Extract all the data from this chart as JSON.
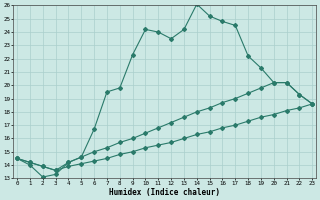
{
  "xlabel": "Humidex (Indice chaleur)",
  "bg_color": "#cce8e4",
  "line_color": "#2a7a6a",
  "grid_color": "#aacfcc",
  "x_min": 0,
  "x_max": 23,
  "y_min": 13,
  "y_max": 26,
  "line1_x": [
    0,
    1,
    2,
    3,
    4,
    5,
    6,
    7,
    8,
    9,
    10,
    11,
    12,
    13,
    14,
    15,
    16,
    17,
    18,
    19,
    20,
    21,
    22,
    23
  ],
  "line1_y": [
    14.5,
    14.0,
    13.1,
    13.3,
    14.2,
    14.6,
    16.7,
    19.5,
    19.8,
    22.3,
    24.2,
    24.0,
    23.5,
    24.2,
    26.1,
    25.2,
    24.8,
    24.5,
    22.2,
    21.3,
    20.2,
    20.2,
    19.3,
    18.6
  ],
  "line2_x": [
    0,
    1,
    2,
    3,
    4,
    5,
    6,
    7,
    8,
    9,
    10,
    11,
    12,
    13,
    14,
    15,
    16,
    17,
    18,
    19,
    20,
    21,
    22,
    23
  ],
  "line2_y": [
    14.5,
    14.2,
    13.9,
    13.6,
    14.2,
    14.6,
    15.0,
    15.3,
    15.7,
    16.0,
    16.4,
    16.8,
    17.2,
    17.6,
    18.0,
    18.3,
    18.7,
    19.0,
    19.4,
    19.8,
    20.2,
    20.2,
    19.3,
    18.6
  ],
  "line3_x": [
    0,
    1,
    2,
    3,
    4,
    5,
    6,
    7,
    8,
    9,
    10,
    11,
    12,
    13,
    14,
    15,
    16,
    17,
    18,
    19,
    20,
    21,
    22,
    23
  ],
  "line3_y": [
    14.5,
    14.2,
    13.9,
    13.6,
    13.9,
    14.1,
    14.3,
    14.5,
    14.8,
    15.0,
    15.3,
    15.5,
    15.7,
    16.0,
    16.3,
    16.5,
    16.8,
    17.0,
    17.3,
    17.6,
    17.8,
    18.1,
    18.3,
    18.6
  ]
}
